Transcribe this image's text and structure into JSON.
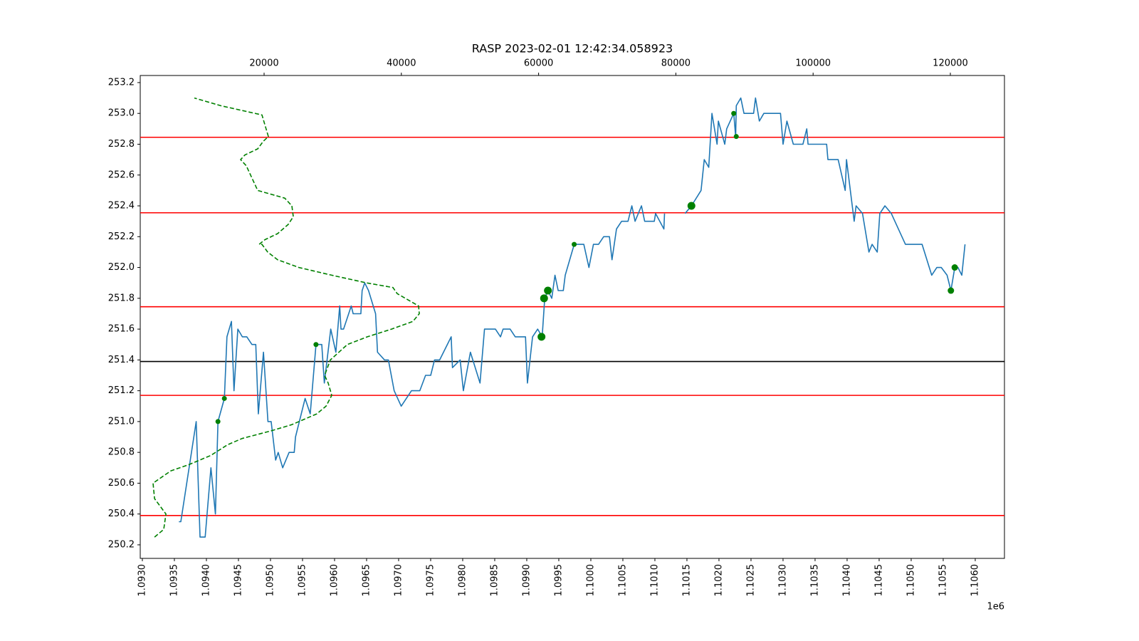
{
  "chart_data": {
    "type": "line",
    "title": "RASP 2023-02-01 12:42:34.058923",
    "x_offset_label": "1e6",
    "xlim": [
      1092967,
      1106456
    ],
    "xticks": [
      {
        "value": 1093000,
        "label": "1.0930"
      },
      {
        "value": 1093500,
        "label": "1.0935"
      },
      {
        "value": 1094000,
        "label": "1.0940"
      },
      {
        "value": 1094500,
        "label": "1.0945"
      },
      {
        "value": 1095000,
        "label": "1.0950"
      },
      {
        "value": 1095500,
        "label": "1.0955"
      },
      {
        "value": 1096000,
        "label": "1.0960"
      },
      {
        "value": 1096500,
        "label": "1.0965"
      },
      {
        "value": 1097000,
        "label": "1.0970"
      },
      {
        "value": 1097500,
        "label": "1.0975"
      },
      {
        "value": 1098000,
        "label": "1.0980"
      },
      {
        "value": 1098500,
        "label": "1.0985"
      },
      {
        "value": 1099000,
        "label": "1.0990"
      },
      {
        "value": 1099500,
        "label": "1.0995"
      },
      {
        "value": 1100000,
        "label": "1.1000"
      },
      {
        "value": 1100500,
        "label": "1.1005"
      },
      {
        "value": 1101000,
        "label": "1.1010"
      },
      {
        "value": 1101500,
        "label": "1.1015"
      },
      {
        "value": 1102000,
        "label": "1.1020"
      },
      {
        "value": 1102500,
        "label": "1.1025"
      },
      {
        "value": 1103000,
        "label": "1.1030"
      },
      {
        "value": 1103500,
        "label": "1.1035"
      },
      {
        "value": 1104000,
        "label": "1.1040"
      },
      {
        "value": 1104500,
        "label": "1.1045"
      },
      {
        "value": 1105000,
        "label": "1.1050"
      },
      {
        "value": 1105500,
        "label": "1.1055"
      },
      {
        "value": 1106000,
        "label": "1.1060"
      }
    ],
    "x2lim": [
      1950,
      127884
    ],
    "x2ticks": [
      20000,
      40000,
      60000,
      80000,
      100000,
      120000
    ],
    "ylim": [
      250.112,
      253.246
    ],
    "yticks": [
      250.2,
      250.4,
      250.6,
      250.8,
      {
        "value": 251,
        "label": "251.0"
      },
      251.2,
      251.4,
      251.6,
      251.8,
      {
        "value": 252,
        "label": "252.0"
      },
      252.2,
      252.4,
      252.6,
      252.8,
      {
        "value": 253,
        "label": "253.0"
      },
      253.2
    ],
    "hlines": [
      {
        "value": 252.845,
        "color": "#ff0000"
      },
      {
        "value": 252.355,
        "color": "#ff0000"
      },
      {
        "value": 251.745,
        "color": "#ff0000"
      },
      {
        "value": 251.39,
        "color": "#000000"
      },
      {
        "value": 251.17,
        "color": "#ff0000"
      },
      {
        "value": 250.39,
        "color": "#ff0000"
      }
    ],
    "series": [
      {
        "type": "line",
        "color": "#1f77b4",
        "x": [
          1093570,
          1093600,
          1093840,
          1093900,
          1093980,
          1094070,
          1094140,
          1094180,
          1094280,
          1094320,
          1094390,
          1094430,
          1094490,
          1094560,
          1094630,
          1094710,
          1094770,
          1094810,
          1094890,
          1094960,
          1095010,
          1095080,
          1095120,
          1095190,
          1095290,
          1095370,
          1095390,
          1095540,
          1095620,
          1095710,
          1095800,
          1095840,
          1095940,
          1096020,
          1096080,
          1096100,
          1096140,
          1096260,
          1096290,
          1096410,
          1096430,
          1096470,
          1096530,
          1096640,
          1096670,
          1096780,
          1096840,
          1096930,
          1097040,
          1097200,
          1097330,
          1097420,
          1097500,
          1097560,
          1097640,
          1097820,
          1097840,
          1097960,
          1098010,
          1098120,
          1098270,
          1098340,
          1098510,
          1098590,
          1098630,
          1098740,
          1098820,
          1098980,
          1099010,
          1099090,
          1099170,
          1099240,
          1099280,
          1099330,
          1099390,
          1099440,
          1099490,
          1099570,
          1099600,
          1099740,
          1099890,
          1099970,
          1100040,
          1100120,
          1100200,
          1100290,
          1100330,
          1100400,
          1100480,
          1100580,
          1100640,
          1100690,
          1100790,
          1100840,
          1100990,
          1101010,
          1101140,
          1101150,
          1101300,
          1101470,
          1101570,
          1101720,
          1101770,
          1101840,
          1101890,
          1101970,
          1101990,
          1102090,
          1102120,
          1102230,
          1102260,
          1102270,
          1102340,
          1102390,
          1102540,
          1102570,
          1102630,
          1102700,
          1102960,
          1103000,
          1103060,
          1103160,
          1103310,
          1103370,
          1103390,
          1103680,
          1103700,
          1103860,
          1103970,
          1103990,
          1104110,
          1104140,
          1104240,
          1104340,
          1104390,
          1104470,
          1104510,
          1104590,
          1104690,
          1104910,
          1105170,
          1105320,
          1105400,
          1105470,
          1105560,
          1105620,
          1105680,
          1105730,
          1105790,
          1105840
        ],
        "values": [
          250.35,
          250.35,
          251.0,
          250.25,
          250.25,
          250.7,
          250.4,
          251.0,
          251.15,
          251.55,
          251.65,
          251.2,
          251.6,
          251.55,
          251.55,
          251.5,
          251.5,
          251.05,
          251.45,
          251.0,
          251.0,
          250.75,
          250.8,
          250.7,
          250.8,
          250.8,
          250.9,
          251.15,
          251.05,
          251.5,
          251.5,
          251.25,
          251.6,
          251.45,
          251.75,
          251.6,
          251.6,
          251.75,
          251.7,
          251.7,
          251.85,
          251.9,
          251.85,
          251.7,
          251.45,
          251.4,
          251.4,
          251.2,
          251.1,
          251.2,
          251.2,
          251.3,
          251.3,
          251.4,
          251.4,
          251.55,
          251.35,
          251.4,
          251.2,
          251.45,
          251.25,
          251.6,
          251.6,
          251.55,
          251.6,
          251.6,
          251.55,
          251.55,
          251.25,
          251.55,
          251.6,
          251.55,
          251.8,
          251.85,
          251.8,
          251.95,
          251.85,
          251.85,
          251.95,
          252.15,
          252.15,
          252.0,
          252.15,
          252.15,
          252.2,
          252.2,
          252.05,
          252.25,
          252.3,
          252.3,
          252.4,
          252.3,
          252.4,
          252.3,
          252.3,
          252.35,
          252.25,
          252.35,
          null,
          252.35,
          252.4,
          252.5,
          252.7,
          252.65,
          253.0,
          252.8,
          252.95,
          252.8,
          252.9,
          253.0,
          252.85,
          253.05,
          253.1,
          253.0,
          253.0,
          253.1,
          252.95,
          253.0,
          253.0,
          252.8,
          252.95,
          252.8,
          252.8,
          252.9,
          252.8,
          252.8,
          252.7,
          252.7,
          252.5,
          252.7,
          252.3,
          252.4,
          252.35,
          252.1,
          252.15,
          252.1,
          252.35,
          252.4,
          252.35,
          252.15,
          252.15,
          251.95,
          252.0,
          252.0,
          251.95,
          251.85,
          252.0,
          252.0,
          251.95,
          252.15
        ]
      },
      {
        "type": "scatter",
        "color": "#008000",
        "x": [
          1094180,
          1094280,
          1095710,
          1099230,
          1099270,
          1099330,
          1099740,
          1101570,
          1102230,
          1102270,
          1105620,
          1105680
        ],
        "values": [
          251.0,
          251.15,
          251.5,
          251.55,
          251.8,
          251.85,
          252.15,
          252.4,
          253.0,
          252.85,
          251.85,
          252.0
        ],
        "sizes": [
          3.5,
          3.5,
          3.5,
          5.5,
          5.5,
          5.5,
          3.5,
          5.5,
          3.5,
          3.5,
          4.5,
          4.5
        ]
      },
      {
        "type": "line",
        "axis": "x2",
        "color": "#008000",
        "dashed": true,
        "x": [
          4030,
          5370,
          5690,
          4860,
          4030,
          3820,
          6410,
          9000,
          12220,
          14710,
          16780,
          21040,
          24050,
          27680,
          29020,
          29850,
          29340,
          28820,
          29650,
          32140,
          35040,
          38570,
          41680,
          42610,
          42510,
          39400,
          38780,
          34940,
          29850,
          25080,
          21970,
          20520,
          19690,
          19270,
          20100,
          21970,
          23530,
          24250,
          24050,
          23010,
          19070,
          18030,
          17410,
          16580,
          17200,
          19070,
          19900,
          20620,
          19690,
          13670,
          9830
        ],
        "values": [
          250.25,
          250.3,
          250.4,
          250.45,
          250.5,
          250.6,
          250.68,
          250.72,
          250.78,
          250.85,
          250.89,
          250.94,
          250.98,
          251.05,
          251.1,
          251.17,
          251.25,
          251.3,
          251.4,
          251.5,
          251.55,
          251.6,
          251.65,
          251.7,
          251.75,
          251.83,
          251.87,
          251.9,
          251.95,
          252.0,
          252.05,
          252.1,
          252.15,
          252.15,
          252.18,
          252.22,
          252.28,
          252.33,
          252.4,
          252.45,
          252.5,
          252.6,
          252.66,
          252.7,
          252.73,
          252.77,
          252.82,
          252.85,
          252.99,
          253.05,
          253.1
        ]
      }
    ]
  }
}
